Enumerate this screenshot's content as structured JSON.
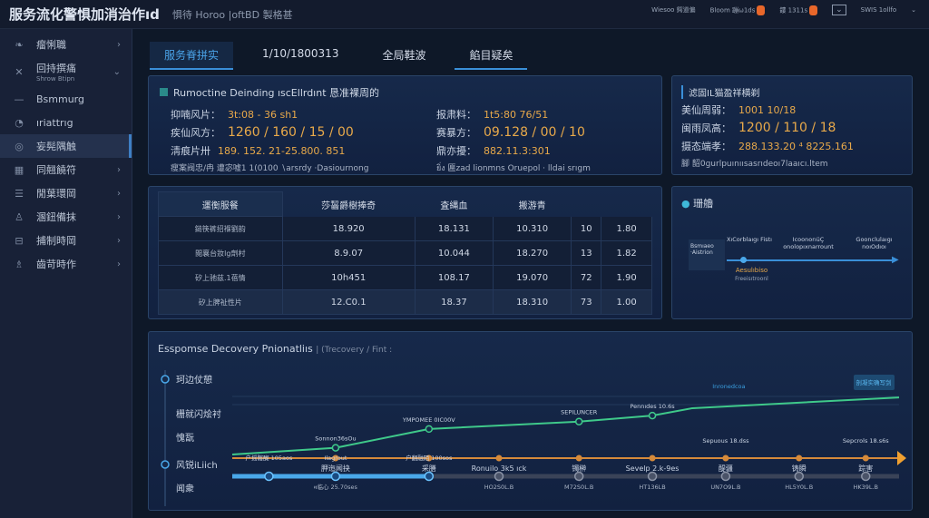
{
  "header": {
    "title": "服务流化警惧加消治作ıd",
    "subtitle": "惧待 Horoo |oftBD 製格甚",
    "right": [
      {
        "label": "Wiesoo 鍔道偏",
        "badge": ""
      },
      {
        "label": "Bloom 蹦ω1ds",
        "badge": "9"
      },
      {
        "label": "鏤 1311s",
        "badge": "0"
      },
      {
        "label": "",
        "badge": ""
      },
      {
        "label": "SWIS 1ollfo",
        "badge": ""
      }
    ]
  },
  "sidebar": {
    "items": [
      {
        "label": "瘤悧職",
        "icon": "leaf-icon",
        "chev": "›"
      },
      {
        "label": "回持撰痛",
        "sub": "Shrow Btipn",
        "icon": "cross-icon",
        "chev": "⌄"
      },
      {
        "label": "Bsmmurg",
        "icon": "dash-icon"
      },
      {
        "label": "ıriattrıg",
        "icon": "clock-icon"
      },
      {
        "label": "妄髡隅触",
        "icon": "circle-icon",
        "active": true
      },
      {
        "label": "同翹饒符",
        "icon": "grid-icon",
        "chev": "›"
      },
      {
        "label": "閒葉環岡",
        "icon": "list-icon",
        "chev": "›"
      },
      {
        "label": "溷鈕備抹",
        "icon": "user-icon",
        "chev": "›"
      },
      {
        "label": "捕制時岡",
        "icon": "box-icon",
        "chev": "›"
      },
      {
        "label": "齒苛時作",
        "icon": "people-icon",
        "chev": "›"
      }
    ]
  },
  "tabs": [
    {
      "label": "服务脊拼实"
    },
    {
      "label": "1/10/1800313"
    },
    {
      "label": "全局鞋波"
    },
    {
      "label": "餡目疑矣"
    }
  ],
  "card1": {
    "title": "Rumoctine Deinding ıscEllrdınt 恳准裸周的",
    "left": [
      {
        "k": "抑喃风片：",
        "v": "3t:08 - 36 sh1"
      },
      {
        "k": "疾仙风方：",
        "v": "1260 / 160 / 15 / 00",
        "big": true
      },
      {
        "k": "淸痕片卅",
        "v": "189. 152. 21-25.800. 851"
      }
    ],
    "right": [
      {
        "k": "报肃料：",
        "v": "1t5:80 76/51"
      },
      {
        "k": "赛暴方：",
        "v": "09.128 / 00 / 10",
        "big": true
      },
      {
        "k": "鼎亦擾：",
        "v": "882.11.3:301"
      }
    ],
    "foot_left": "瘦案阀忠/冉  遭宓嘘1 1(0100 ∖arsrdy ·Dasiournong",
    "foot_right": "ยิ่ง 匾zad lionmns Oruepol · lldai srıgm"
  },
  "card2": {
    "title": "滤固IL猫盈祥横剃",
    "rows": [
      {
        "k": "美仙周弱：",
        "v": "1001 10/18"
      },
      {
        "k": "闽雨凤高：",
        "v": "1200 / 110 / 18",
        "big": true
      },
      {
        "k": "摄态端孝：",
        "v": "288.133.20 ⁴ 8225.161"
      }
    ],
    "foot": "腳 韶0gurlpuınıısasrıdeoı7laaıcı.ltem"
  },
  "table": {
    "headers": [
      "運衡服餐",
      "莎齧爵樹捧奇",
      "査縄血",
      "搬游青",
      "",
      ""
    ],
    "rows": [
      [
        "鎚筷裤招褓劉韵",
        "18.920",
        "18.131",
        "10.310",
        "10",
        "1.80"
      ],
      [
        "閲襄台妝lg劑村",
        "8.9.07",
        "10.044",
        "18.270",
        "13",
        "1.82"
      ],
      [
        "矽上驰兹.1蓓情",
        "10h451",
        "108.17",
        "19.070",
        "72",
        "1.90"
      ],
      [
        "矽上脾祉性片",
        "12.C0.1",
        "18.37",
        "18.310",
        "73",
        "1.00"
      ]
    ]
  },
  "flow": {
    "title": "珊艪",
    "box": "Bsmıaeo ·Aistrion",
    "labels": [
      "XıCorblaıgı Fistı",
      "IcoonorıüÇ onolopıxnarrount",
      "Goonclulaıgı noıOdıoı"
    ],
    "below": [
      "Aesulıbiso",
      "Freeisıtroonl"
    ]
  },
  "timeline": {
    "title": "Esspomse Decovery Pnionatliıs",
    "subtitle": "| (Trecovery / Fint :",
    "row_labels": [
      "珂边仗憩",
      "栅就闪烩衬",
      "愧翫",
      "风锐iLiich",
      "闻衆"
    ],
    "green": {
      "x": [
        0,
        0.155,
        0.295,
        0.52,
        0.63,
        0.69,
        1
      ],
      "y": [
        0,
        0.1,
        0.38,
        0.49,
        0.58,
        0.69,
        0.85
      ],
      "labels": [
        "",
        "Sonnon36sOu",
        "YMPOMEE 0IC00V",
        "SEPILUNCER",
        "Pennıdes 10.6s",
        "",
        "",
        ""
      ],
      "tag": "Inronedcoa",
      "button": "剖凝实确写剑"
    },
    "orange": {
      "labels": [
        "胛迤闻抉",
        "采膳",
        "Ronuilo 3k5 ıck",
        "镯榊",
        "Sevelp 2.k-9es",
        "醍疆",
        "铸瞬",
        "踪害"
      ],
      "above": [
        "",
        "",
        "",
        "",
        "",
        "Sepuous 18.dss",
        "",
        "Sepcrols 18.s6s"
      ]
    },
    "blue": {
      "progress": 0.295,
      "x": [
        0.055,
        0.155,
        0.295,
        0.4,
        0.52,
        0.63,
        0.74,
        0.85,
        0.95
      ],
      "above": [
        "户摇髂醐 105aos",
        "Ilagrout",
        "户翻融陌 100sos",
        "",
        "",
        "",
        "",
        "",
        ""
      ],
      "below": [
        "",
        "ዛ临心 25.70ses",
        "",
        "HO2S0L.B",
        "M72S0L.B",
        "HT136LB",
        "UN7O9L.B",
        "HL5Y0L.B",
        "HK39L.B"
      ]
    }
  },
  "colors": {
    "accent": "#3a8fd8",
    "value": "#e8a94a",
    "green": "#3fc98a",
    "orange": "#d58a3a",
    "blue": "#4aa8ea"
  }
}
